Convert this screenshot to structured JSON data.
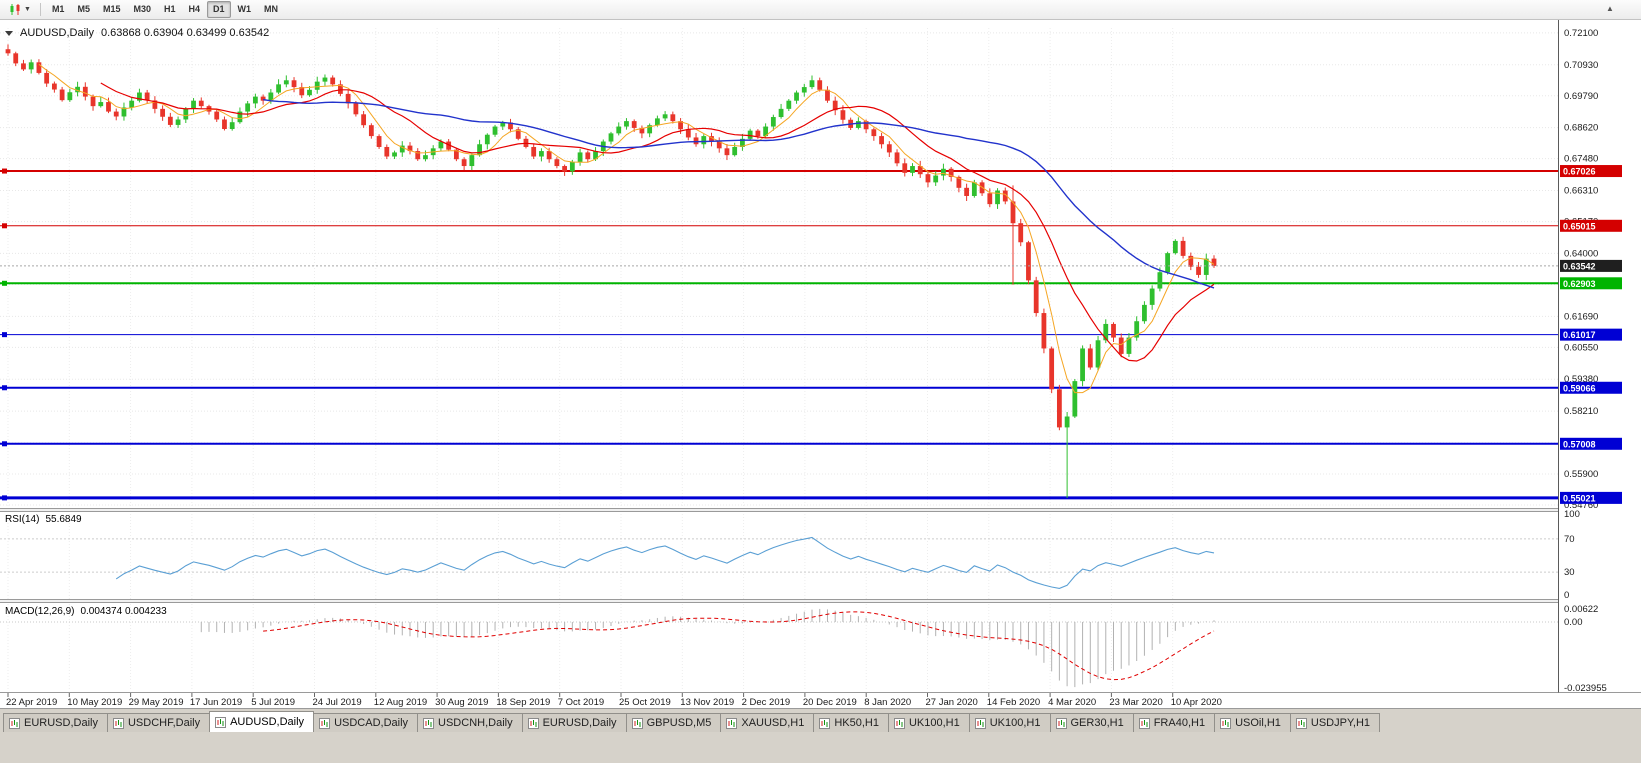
{
  "toolbar": {
    "timeframes": [
      {
        "label": "M1",
        "active": false
      },
      {
        "label": "M5",
        "active": false
      },
      {
        "label": "M15",
        "active": false
      },
      {
        "label": "M30",
        "active": false
      },
      {
        "label": "H1",
        "active": false
      },
      {
        "label": "H4",
        "active": false
      },
      {
        "label": "D1",
        "active": true
      },
      {
        "label": "W1",
        "active": false
      },
      {
        "label": "MN",
        "active": false
      }
    ],
    "scroll_up_glyph": "▲"
  },
  "chart": {
    "title": "AUDUSD,Daily",
    "ohlc": "0.63868 0.63904 0.63499 0.63542"
  },
  "rsi_panel": {
    "label": "RSI(14)",
    "value": "55.6849"
  },
  "macd_panel": {
    "label": "MACD(12,26,9)",
    "value": "0.004374 0.004233"
  },
  "chart_data": {
    "type": "candlestick",
    "symbol": "AUDUSD",
    "timeframe": "Daily",
    "ohlc": {
      "open": 0.63868,
      "high": 0.63904,
      "low": 0.63499,
      "close": 0.63542
    },
    "current_price": 0.63542,
    "colors": {
      "bull": "#2FBF2F",
      "bear": "#E8352B",
      "rsi": "#5A9FD4",
      "macd_hist": "#b2b2b2",
      "macd_signal": "#E00000",
      "grid": "#e8e8e8",
      "vgrid": "#ededed"
    },
    "price_axis_labels": [
      "0.72100",
      "0.70930",
      "0.69790",
      "0.68620",
      "0.67480",
      "0.66310",
      "0.65170",
      "0.64000",
      "0.62860",
      "0.61690",
      "0.60550",
      "0.59380",
      "0.58210",
      "0.57040",
      "0.55900",
      "0.54760"
    ],
    "levels": [
      {
        "price": 0.67026,
        "label": "0.67026",
        "color": "#D40000",
        "width": 2
      },
      {
        "price": 0.65015,
        "label": "0.65015",
        "color": "#D40000",
        "width": 1
      },
      {
        "price": 0.62903,
        "label": "0.62903",
        "color": "#00B400",
        "width": 2
      },
      {
        "price": 0.61017,
        "label": "0.61017",
        "color": "#0000D4",
        "width": 1
      },
      {
        "price": 0.59066,
        "label": "0.59066",
        "color": "#0000D4",
        "width": 2
      },
      {
        "price": 0.57008,
        "label": "0.57008",
        "color": "#0000D4",
        "width": 2
      },
      {
        "price": 0.55021,
        "label": "0.55021",
        "color": "#0000D4",
        "width": 3
      }
    ],
    "moving_averages": [
      {
        "period": 5,
        "color": "#F5A623",
        "width": 1
      },
      {
        "period": 13,
        "color": "#E60000",
        "width": 1.2
      },
      {
        "period": 34,
        "color": "#2233CC",
        "width": 1.4
      }
    ],
    "date_labels": [
      "22 Apr 2019",
      "10 May 2019",
      "29 May 2019",
      "17 Jun 2019",
      "5 Jul 2019",
      "24 Jul 2019",
      "12 Aug 2019",
      "30 Aug 2019",
      "18 Sep 2019",
      "7 Oct 2019",
      "25 Oct 2019",
      "13 Nov 2019",
      "2 Dec 2019",
      "20 Dec 2019",
      "8 Jan 2020",
      "27 Jan 2020",
      "14 Feb 2020",
      "4 Mar 2020",
      "23 Mar 2020",
      "10 Apr 2020"
    ],
    "rsi": {
      "period": 14,
      "levels": [
        70,
        30
      ],
      "axis_labels": [
        {
          "text": "100",
          "value": 100
        },
        {
          "text": "70",
          "value": 70
        },
        {
          "text": "30",
          "value": 30
        },
        {
          "text": "0",
          "value": 0
        }
      ]
    },
    "macd": {
      "fast": 12,
      "slow": 26,
      "signal": 9,
      "axis_labels": {
        "top": "0.00622",
        "zero": "0.00",
        "bottom": "-0.023955"
      }
    },
    "candles": [
      0.7135,
      0.7098,
      0.7076,
      0.7102,
      0.7063,
      0.7024,
      0.7002,
      0.6963,
      0.6992,
      0.7012,
      0.6976,
      0.6941,
      0.6956,
      0.6921,
      0.6903,
      0.6936,
      0.6961,
      0.6991,
      0.6962,
      0.6931,
      0.6902,
      0.6872,
      0.6892,
      0.6931,
      0.6961,
      0.6941,
      0.6921,
      0.6892,
      0.6857,
      0.6882,
      0.6921,
      0.6951,
      0.6976,
      0.6961,
      0.6991,
      0.7021,
      0.7036,
      0.7011,
      0.6981,
      0.7001,
      0.7031,
      0.7046,
      0.7021,
      0.6986,
      0.6951,
      0.6911,
      0.6871,
      0.6831,
      0.6791,
      0.6756,
      0.6771,
      0.6796,
      0.6776,
      0.6746,
      0.6761,
      0.6786,
      0.6811,
      0.6781,
      0.6746,
      0.6721,
      0.6761,
      0.6801,
      0.6836,
      0.6866,
      0.6881,
      0.6856,
      0.6821,
      0.6791,
      0.6756,
      0.6776,
      0.6746,
      0.6721,
      0.6701,
      0.6736,
      0.6771,
      0.6746,
      0.6776,
      0.6811,
      0.6841,
      0.6866,
      0.6886,
      0.6861,
      0.6841,
      0.6871,
      0.6896,
      0.6911,
      0.6886,
      0.6856,
      0.6826,
      0.6801,
      0.6831,
      0.6811,
      0.6786,
      0.6761,
      0.6791,
      0.6821,
      0.6851,
      0.6831,
      0.6866,
      0.6901,
      0.6931,
      0.6961,
      0.6991,
      0.7011,
      0.7036,
      0.7001,
      0.6961,
      0.6926,
      0.6891,
      0.6861,
      0.6886,
      0.6856,
      0.6831,
      0.6801,
      0.6771,
      0.6731,
      0.6696,
      0.6721,
      0.6691,
      0.6661,
      0.6686,
      0.6711,
      0.6681,
      0.6641,
      0.6611,
      0.6661,
      0.6621,
      0.6581,
      0.6631,
      0.6591,
      {
        "c": 0.6511,
        "l": 0.6285,
        "h": 0.665
      },
      0.6441,
      0.6301,
      0.6181,
      0.6051,
      0.5901,
      0.5761,
      {
        "c": 0.5801,
        "l": 0.5502
      },
      0.5931,
      0.6051,
      0.5981,
      0.6081,
      0.6141,
      0.6091,
      0.6031,
      0.6091,
      0.6151,
      0.6211,
      0.6271,
      0.6331,
      0.6401,
      0.6446,
      0.6391,
      0.6351,
      0.6321,
      0.6381,
      0.63542
    ]
  },
  "tabs": [
    {
      "label": "EURUSD,Daily",
      "active": false
    },
    {
      "label": "USDCHF,Daily",
      "active": false
    },
    {
      "label": "AUDUSD,Daily",
      "active": true
    },
    {
      "label": "USDCAD,Daily",
      "active": false
    },
    {
      "label": "USDCNH,Daily",
      "active": false
    },
    {
      "label": "EURUSD,Daily",
      "active": false
    },
    {
      "label": "GBPUSD,M5",
      "active": false
    },
    {
      "label": "XAUUSD,H1",
      "active": false
    },
    {
      "label": "HK50,H1",
      "active": false
    },
    {
      "label": "UK100,H1",
      "active": false
    },
    {
      "label": "UK100,H1",
      "active": false
    },
    {
      "label": "GER30,H1",
      "active": false
    },
    {
      "label": "FRA40,H1",
      "active": false
    },
    {
      "label": "USOil,H1",
      "active": false
    },
    {
      "label": "USDJPY,H1",
      "active": false
    }
  ]
}
